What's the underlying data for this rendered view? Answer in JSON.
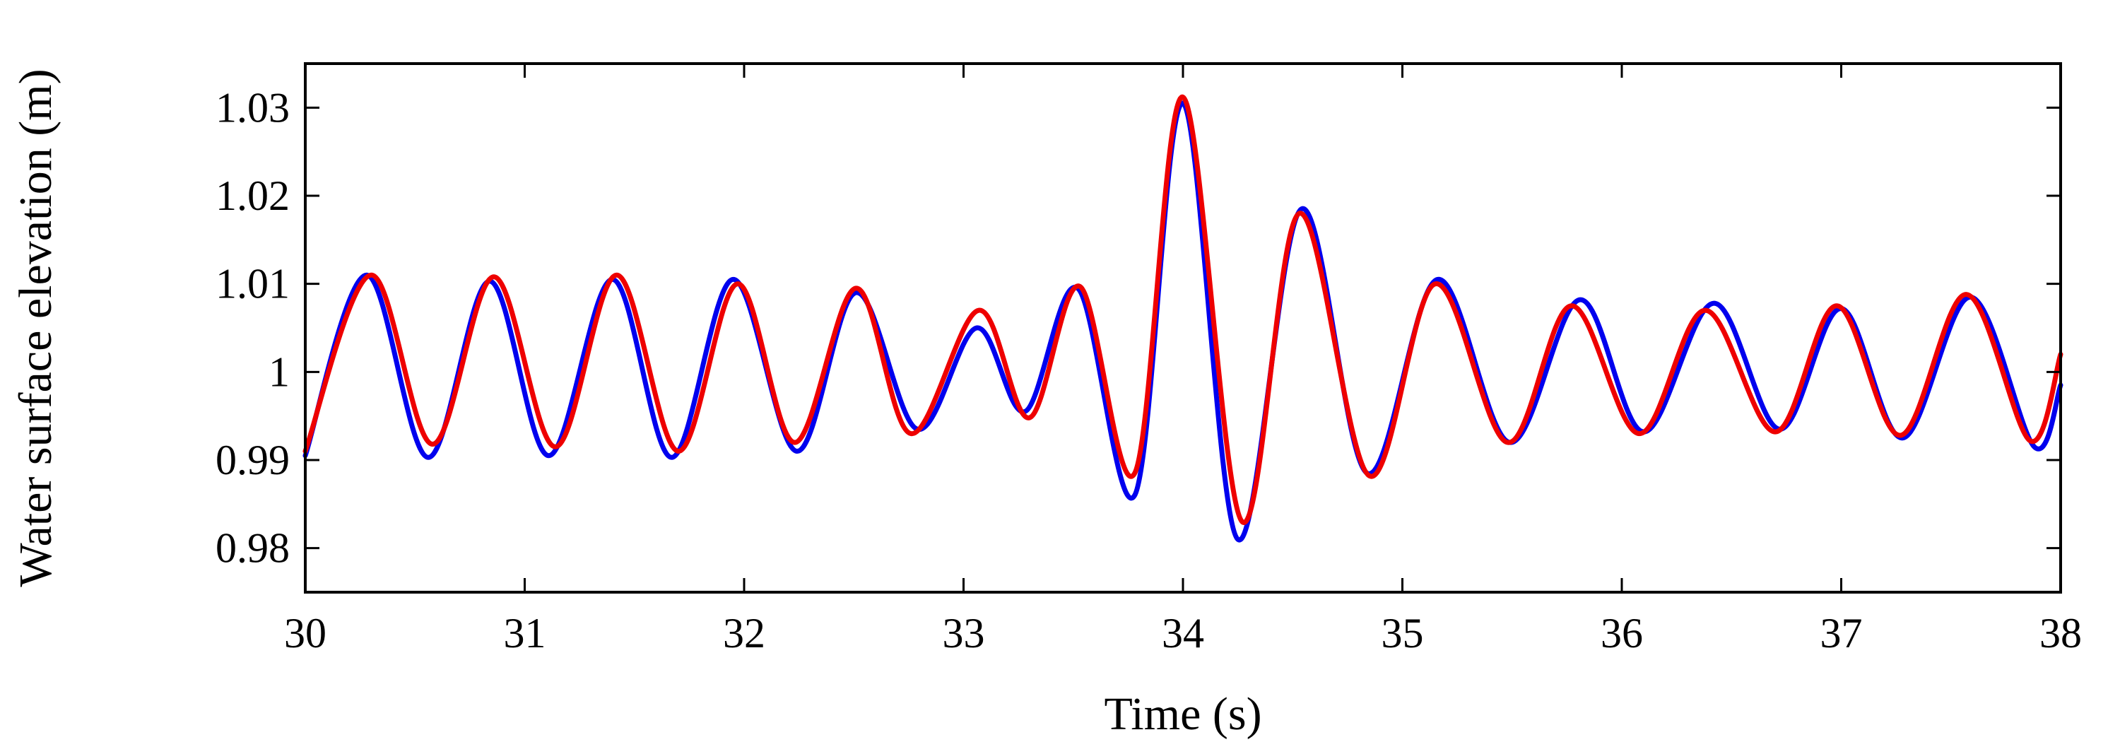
{
  "chart_data": {
    "type": "line",
    "title": "",
    "xlabel": "Time (s)",
    "ylabel": "Water surface elevation (m)",
    "xlim": [
      30,
      38
    ],
    "ylim": [
      0.975,
      1.035
    ],
    "xticks": [
      30,
      31,
      32,
      33,
      34,
      35,
      36,
      37,
      38
    ],
    "xtick_labels": [
      "30",
      "31",
      "32",
      "33",
      "34",
      "35",
      "36",
      "37",
      "38"
    ],
    "yticks": [
      0.98,
      0.99,
      1.0,
      1.01,
      1.02,
      1.03
    ],
    "ytick_labels": [
      "0.98",
      "0.99",
      "1",
      "1.01",
      "1.02",
      "1.03"
    ],
    "grid": false,
    "legend": "none",
    "series": [
      {
        "color": "#0000ee",
        "x": [
          30.0,
          30.28,
          30.56,
          30.84,
          31.11,
          31.4,
          31.67,
          31.95,
          32.24,
          32.51,
          32.79,
          33.06,
          33.28,
          33.52,
          33.78,
          34.0,
          34.25,
          34.54,
          34.84,
          35.16,
          35.49,
          35.81,
          36.1,
          36.42,
          36.72,
          37.0,
          37.28,
          37.59,
          37.88,
          38.0
        ],
        "y": [
          0.9905,
          1.011,
          0.9903,
          1.0103,
          0.9905,
          1.0105,
          0.9903,
          1.0105,
          0.991,
          1.009,
          0.9935,
          1.005,
          0.9955,
          1.0095,
          0.986,
          1.0305,
          0.981,
          1.0185,
          0.9885,
          1.0105,
          0.992,
          1.0082,
          0.9932,
          1.0078,
          0.9935,
          1.0072,
          0.9925,
          1.0085,
          0.9915,
          0.9985
        ]
      },
      {
        "color": "#ee0000",
        "x": [
          30.0,
          30.3,
          30.58,
          30.86,
          31.14,
          31.42,
          31.7,
          31.97,
          32.23,
          32.51,
          32.76,
          33.07,
          33.3,
          33.53,
          33.78,
          34.0,
          34.27,
          34.53,
          34.85,
          35.15,
          35.48,
          35.77,
          36.08,
          36.38,
          36.7,
          36.98,
          37.27,
          37.57,
          37.86,
          38.0
        ],
        "y": [
          0.991,
          1.011,
          0.9918,
          1.0108,
          0.9915,
          1.011,
          0.991,
          1.01,
          0.992,
          1.0095,
          0.993,
          1.007,
          0.9948,
          1.0097,
          0.9885,
          1.0312,
          0.983,
          1.018,
          0.9882,
          1.01,
          0.992,
          1.0075,
          0.993,
          1.007,
          0.9932,
          1.0075,
          0.9928,
          1.0088,
          0.9922,
          1.002
        ]
      }
    ]
  }
}
